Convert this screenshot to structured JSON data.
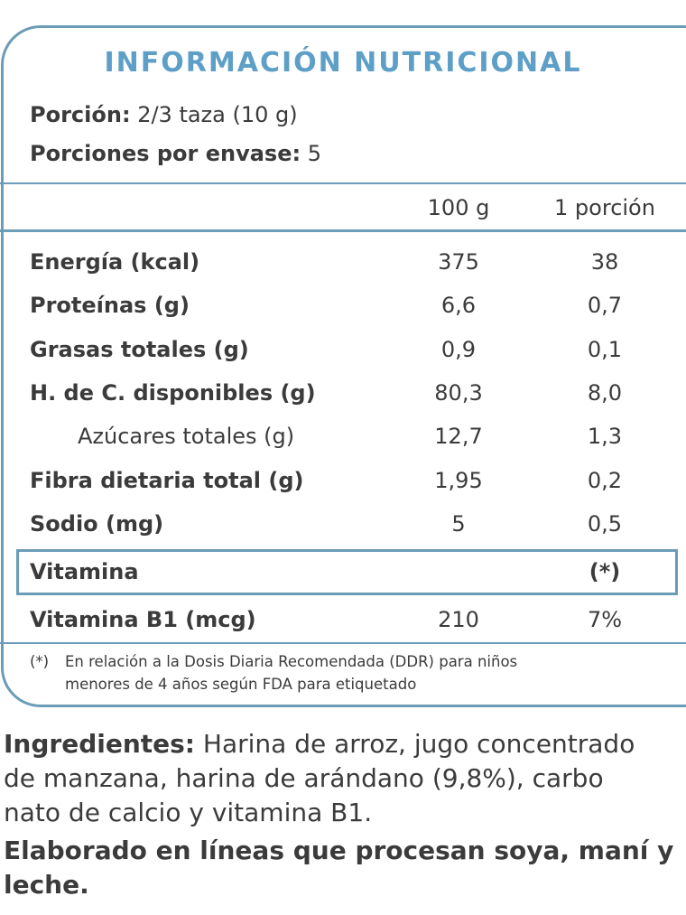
{
  "label": {
    "title": "INFORMACIÓN NUTRICIONAL",
    "serving": {
      "label": "Porción:",
      "value": "2/3 taza  (10 g)"
    },
    "servings_per_pack": {
      "label": "Porciones por envase:",
      "value": "5"
    },
    "columns": [
      "100 g",
      "1 porción"
    ],
    "rows": [
      {
        "name": "Energía (kcal)",
        "per100": "375",
        "portion": "38",
        "indent": false
      },
      {
        "name": "Proteínas (g)",
        "per100": "6,6",
        "portion": "0,7",
        "indent": false
      },
      {
        "name": "Grasas totales (g)",
        "per100": "0,9",
        "portion": "0,1",
        "indent": false
      },
      {
        "name": "H. de C. disponibles (g)",
        "per100": "80,3",
        "portion": "8,0",
        "indent": false
      },
      {
        "name": "Azúcares totales (g)",
        "per100": "12,7",
        "portion": "1,3",
        "indent": true
      },
      {
        "name": "Fibra dietaria total (g)",
        "per100": "1,95",
        "portion": "0,2",
        "indent": false
      },
      {
        "name": "Sodio (mg)",
        "per100": "5",
        "portion": "0,5",
        "indent": false
      }
    ],
    "vitamin_header": {
      "name": "Vitamina",
      "portion": "(*)"
    },
    "vitamin_rows": [
      {
        "name": "Vitamina B1 (mcg)",
        "per100": "210",
        "portion": "7%"
      }
    ],
    "footnote": {
      "marker": "(*)",
      "lines": [
        "En relación a la Dosis Diaria Recomendada (DDR) para niños",
        "menores de 4 años según FDA para etiquetado"
      ]
    }
  },
  "ingredients": {
    "label": "Ingredientes:",
    "lines": [
      "Harina de arroz, jugo concentrado",
      "de manzana, harina de arándano (9,8%), carbo",
      "nato de calcio y vitamina B1."
    ]
  },
  "allergens": {
    "lines": [
      "Elaborado en líneas que procesan soya, maní y",
      "leche."
    ]
  }
}
